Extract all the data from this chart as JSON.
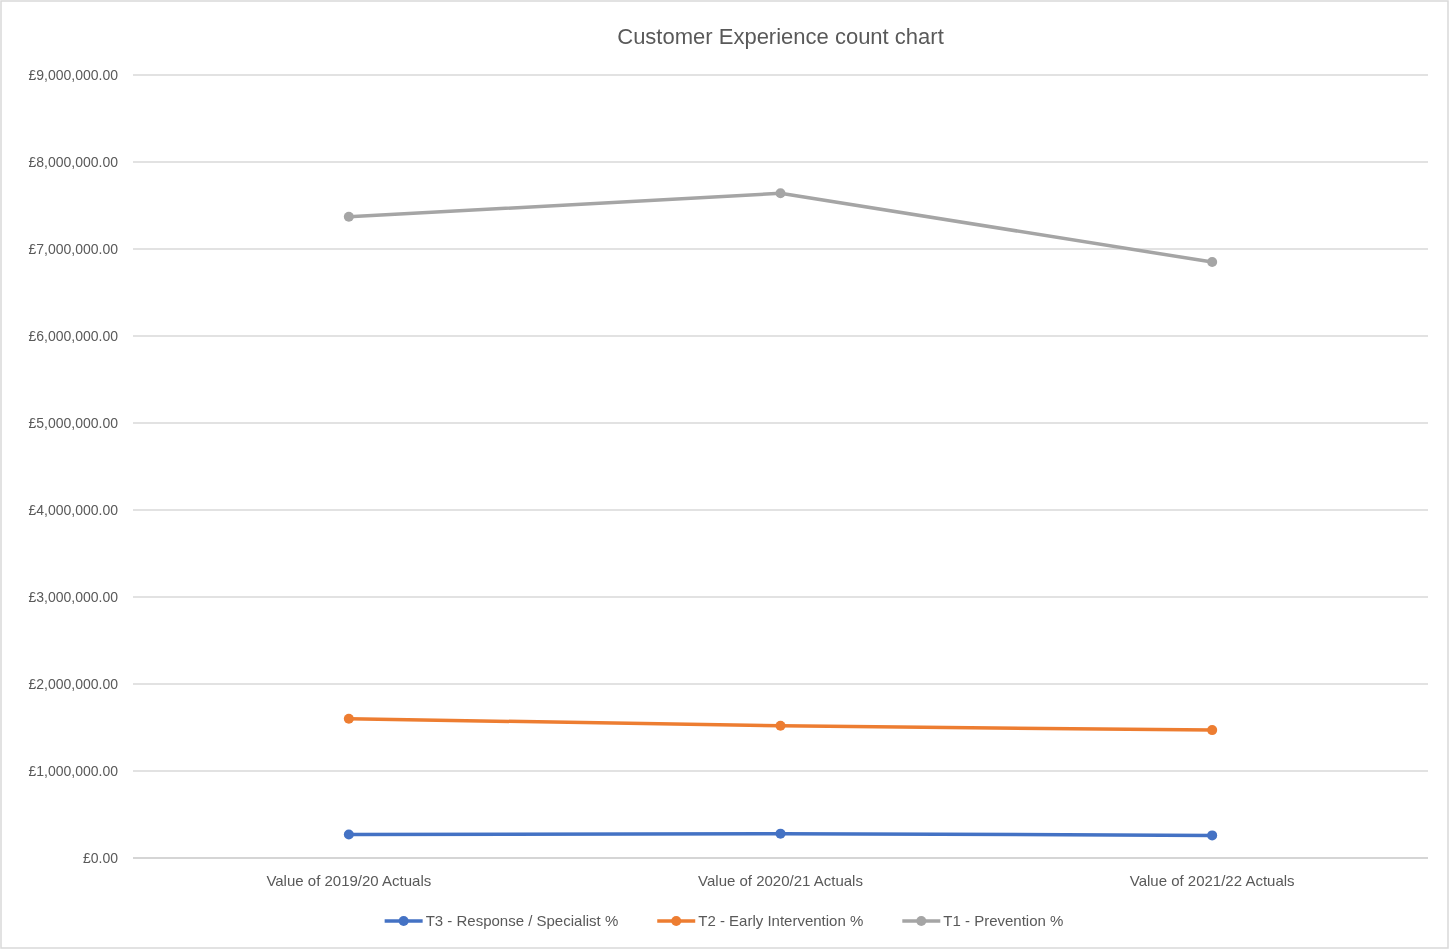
{
  "chart_data": {
    "type": "line",
    "title": "Customer Experience count chart",
    "categories": [
      "Value of 2019/20 Actuals",
      "Value of 2020/21 Actuals",
      "Value of 2021/22 Actuals"
    ],
    "series": [
      {
        "name": "T3 - Response / Specialist %",
        "color": "#4472c4",
        "values": [
          270000,
          280000,
          260000
        ]
      },
      {
        "name": "T2 - Early Intervention %",
        "color": "#ed7d31",
        "values": [
          1600000,
          1520000,
          1470000
        ]
      },
      {
        "name": "T1 - Prevention %",
        "color": "#a5a5a5",
        "values": [
          7370000,
          7640000,
          6850000
        ]
      }
    ],
    "ylim": [
      0,
      9000000
    ],
    "yticks": [
      {
        "value": 0,
        "label": "£0.00"
      },
      {
        "value": 1000000,
        "label": "£1,000,000.00"
      },
      {
        "value": 2000000,
        "label": "£2,000,000.00"
      },
      {
        "value": 3000000,
        "label": "£3,000,000.00"
      },
      {
        "value": 4000000,
        "label": "£4,000,000.00"
      },
      {
        "value": 5000000,
        "label": "£5,000,000.00"
      },
      {
        "value": 6000000,
        "label": "£6,000,000.00"
      },
      {
        "value": 7000000,
        "label": "£7,000,000.00"
      },
      {
        "value": 8000000,
        "label": "£8,000,000.00"
      },
      {
        "value": 9000000,
        "label": "£9,000,000.00"
      }
    ],
    "grid": "y",
    "legend": "bottom",
    "marker": "circle"
  }
}
